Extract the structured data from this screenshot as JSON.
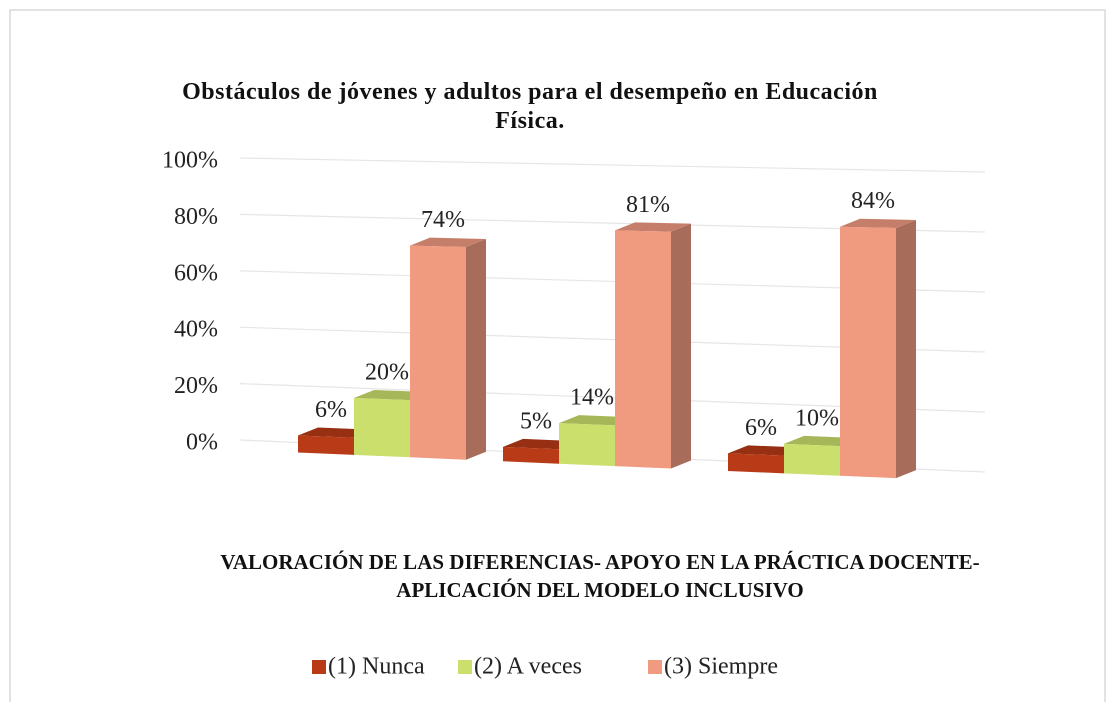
{
  "chart_data": {
    "type": "bar3d",
    "title": "Obstáculos de jóvenes y adultos para el desempeño en Educación Física.",
    "x_label": "VALORACIÓN DE LAS DIFERENCIAS-  APOYO EN LA PRÁCTICA DOCENTE- APLICACIÓN DEL MODELO INCLUSIVO",
    "categories": [
      null,
      null,
      null
    ],
    "series": [
      {
        "name": "(1) Nunca",
        "color": "#b83a16",
        "values": [
          6,
          5,
          6
        ],
        "value_labels": [
          "6%",
          "5%",
          "6%"
        ]
      },
      {
        "name": "(2) A veces",
        "color": "#cadf6c",
        "values": [
          20,
          14,
          10
        ],
        "value_labels": [
          "20%",
          "14%",
          "10%"
        ]
      },
      {
        "name": "(3) Siempre",
        "color": "#f09a80",
        "values": [
          74,
          81,
          84
        ],
        "value_labels": [
          "74%",
          "81%",
          "84%"
        ]
      }
    ],
    "ylim": [
      0,
      100
    ],
    "yticks": [
      {
        "value": 0,
        "label": "0%"
      },
      {
        "value": 20,
        "label": "20%"
      },
      {
        "value": 40,
        "label": "40%"
      },
      {
        "value": 60,
        "label": "60%"
      },
      {
        "value": 80,
        "label": "80%"
      },
      {
        "value": 100,
        "label": "100%"
      }
    ],
    "grid": true,
    "legend": "bottom"
  }
}
